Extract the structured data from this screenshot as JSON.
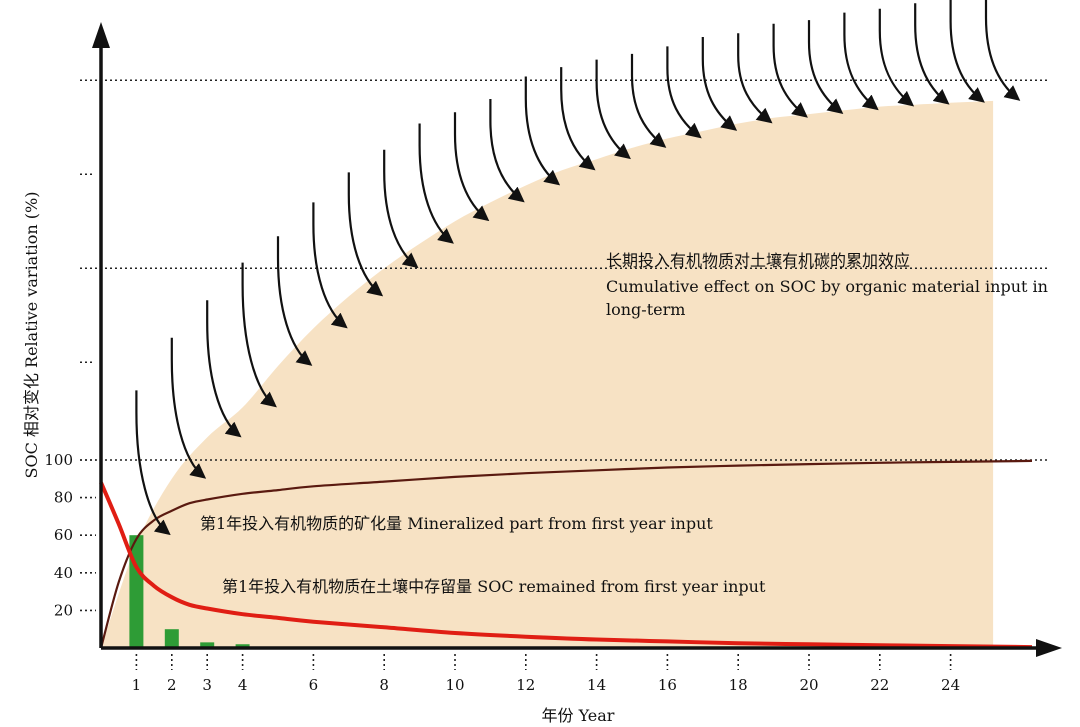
{
  "chart_data": {
    "type": "line",
    "title": "",
    "xlabel": "年份 Year",
    "ylabel": "SOC 相对变化 Relative variation (%)",
    "x_ticks": [
      1,
      2,
      3,
      4,
      6,
      8,
      10,
      12,
      14,
      16,
      18,
      20,
      22,
      24
    ],
    "y_ticks": [
      20,
      40,
      60,
      80,
      100
    ],
    "xlim": [
      0,
      26.3
    ],
    "ylim": [
      0,
      330
    ],
    "series": [
      {
        "name": "第1年投入有机物质的矿化量 Mineralized part from first year input",
        "color": "#5a1a10",
        "x": [
          0,
          0.5,
          1,
          1.5,
          2,
          2.5,
          3,
          4,
          5,
          6,
          8,
          10,
          12,
          14,
          16,
          18,
          20,
          22,
          24,
          26.3
        ],
        "y": [
          0,
          35,
          58,
          68,
          73,
          77,
          79,
          82,
          84,
          86,
          88.5,
          91,
          93,
          94.5,
          96,
          97,
          97.8,
          98.5,
          99,
          99.5
        ]
      },
      {
        "name": "第1年投入有机物质在土壤中存留量 SOC remained from first year input",
        "color": "#e01e14",
        "x": [
          0,
          0.5,
          1,
          1.5,
          2,
          2.5,
          3,
          4,
          5,
          6,
          8,
          10,
          12,
          14,
          16,
          18,
          20,
          22,
          24,
          26.3
        ],
        "y": [
          88,
          66,
          43,
          33,
          27,
          23,
          21,
          18,
          16,
          14,
          11,
          8,
          6,
          4.5,
          3.5,
          2.5,
          2,
          1.5,
          1,
          0.5
        ]
      },
      {
        "name": "长期投入有机物质对土壤有机碳的累加效应 Cumulative effect on SOC by organic material input in long-term",
        "color": "#f7e2c4",
        "x": [
          0,
          1,
          2,
          3,
          4,
          5,
          6,
          7,
          8,
          9,
          10,
          11,
          12,
          13,
          14,
          15,
          16,
          17,
          18,
          19,
          20,
          21,
          22,
          23,
          24,
          25.2
        ],
        "y": [
          0,
          55,
          90,
          112,
          128,
          150,
          170,
          187,
          202,
          215,
          227,
          237,
          246,
          254,
          260,
          266,
          271,
          275,
          279,
          282,
          284,
          286,
          288,
          289,
          290,
          291
        ]
      }
    ],
    "bars": {
      "name": "Annual mineralized input",
      "color": "#2e9c36",
      "x": [
        1,
        2,
        3,
        4
      ],
      "values": [
        60,
        10,
        3,
        2
      ]
    },
    "input_pulses": {
      "x": [
        1,
        2,
        3,
        4,
        5,
        6,
        7,
        8,
        9,
        10,
        11,
        12,
        13,
        14,
        15,
        16,
        17,
        18,
        19,
        20,
        21,
        22,
        23,
        24,
        25
      ],
      "peak": [
        137,
        165,
        185,
        205,
        219,
        237,
        253,
        265,
        279,
        285,
        292,
        304,
        309,
        313,
        316,
        320,
        325,
        327,
        332,
        334,
        338,
        340,
        343,
        345,
        347
      ],
      "end": [
        60,
        90,
        112,
        128,
        150,
        170,
        187,
        202,
        215,
        227,
        237,
        246,
        254,
        260,
        266,
        271,
        275,
        279,
        282,
        284,
        286,
        288,
        289,
        290,
        291
      ]
    },
    "reference_lines": [
      100,
      202,
      302
    ],
    "minor_y_ticks": [
      152,
      252
    ],
    "annotations": {
      "cumulative_zh": "长期投入有机物质对土壤有机碳的累加效应",
      "cumulative_en_1": "Cumulative effect on SOC by organic material input in",
      "cumulative_en_2": "long-term",
      "mineralized": "第1年投入有机物质的矿化量 Mineralized part from first year input",
      "remained": "第1年投入有机物质在土壤中存留量 SOC remained from first year input"
    }
  }
}
